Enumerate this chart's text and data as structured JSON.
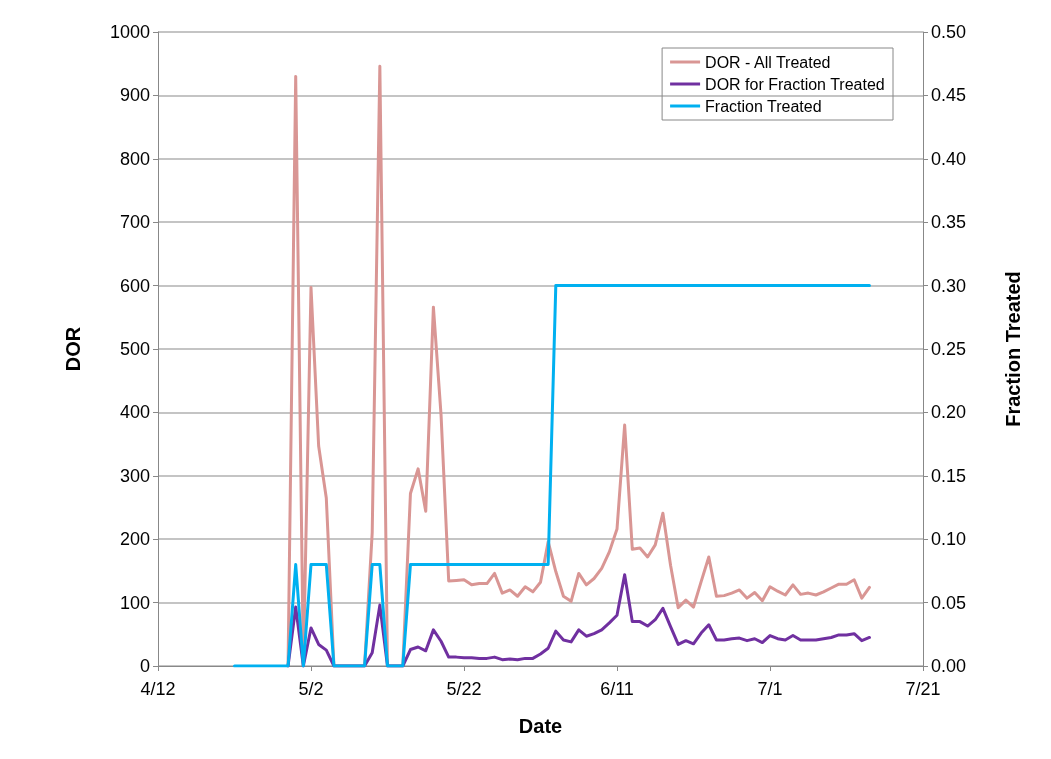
{
  "chart_data": {
    "type": "line",
    "xlabel": "Date",
    "ylabel": "DOR",
    "y2label": "Fraction Treated",
    "x": [
      "--04-29",
      "--04-30",
      "--05-01",
      "--05-02",
      "--05-03",
      "--05-04",
      "--05-05",
      "--05-06",
      "--05-07",
      "--05-08",
      "--05-09",
      "--05-10",
      "--05-11",
      "--05-12",
      "--05-13",
      "--05-14",
      "--05-15",
      "--05-16",
      "--05-17",
      "--05-18",
      "--05-19",
      "--05-20",
      "--05-21",
      "--05-22",
      "--05-23",
      "--05-24",
      "--05-25",
      "--05-26",
      "--05-27",
      "--05-28",
      "--05-29",
      "--05-30",
      "--05-31",
      "--06-01",
      "--06-02",
      "--06-03",
      "--06-04",
      "--06-05",
      "--06-06",
      "--06-07",
      "--06-08",
      "--06-09",
      "--06-10",
      "--06-11",
      "--06-12",
      "--06-13",
      "--06-14",
      "--06-15",
      "--06-16",
      "--06-17",
      "--06-18",
      "--06-19",
      "--06-20",
      "--06-21",
      "--06-22",
      "--06-23",
      "--06-24",
      "--06-25",
      "--06-26",
      "--06-27",
      "--06-28",
      "--06-29",
      "--06-30",
      "--07-01",
      "--07-02",
      "--07-03",
      "--07-04",
      "--07-05",
      "--07-06",
      "--07-07",
      "--07-08",
      "--07-09",
      "--07-10",
      "--07-11",
      "--07-12",
      "--07-13",
      "--07-14"
    ],
    "series": [
      {
        "name": "DOR - All Treated",
        "color": "#d99694",
        "values": [
          0,
          930,
          0,
          597,
          347,
          265,
          0,
          0,
          0,
          0,
          0,
          210,
          946,
          0,
          0,
          0,
          272,
          311,
          244,
          566,
          396,
          134,
          135,
          136,
          128,
          130,
          130,
          146,
          115,
          120,
          110,
          125,
          117,
          132,
          196,
          149,
          110,
          102,
          146,
          128,
          138,
          154,
          180,
          216,
          380,
          184,
          186,
          172,
          191,
          241,
          159,
          92,
          104,
          93,
          133,
          172,
          110,
          111,
          115,
          120,
          107,
          116,
          103,
          125,
          118,
          112,
          128,
          113,
          115,
          112,
          117,
          123,
          129,
          129,
          136,
          107,
          124
        ]
      },
      {
        "name": "DOR for Fraction Treated",
        "color": "#7030a0",
        "values": [
          0,
          93,
          0,
          60,
          34,
          25,
          0,
          0,
          0,
          0,
          0,
          21,
          96,
          0,
          0,
          0,
          26,
          30,
          24,
          57,
          39,
          14,
          14,
          13,
          13,
          12,
          12,
          14,
          10,
          11,
          10,
          12,
          12,
          19,
          28,
          55,
          41,
          38,
          57,
          47,
          51,
          57,
          68,
          80,
          144,
          70,
          70,
          63,
          73,
          91,
          62,
          34,
          40,
          35,
          52,
          65,
          41,
          41,
          43,
          44,
          40,
          43,
          37,
          48,
          43,
          41,
          48,
          41,
          41,
          41,
          43,
          45,
          49,
          49,
          51,
          40,
          45
        ]
      },
      {
        "name": "Fraction Treated",
        "color": "#00b0f0",
        "axis": "y2",
        "x": [
          "--04-22",
          "--04-29",
          "--04-30",
          "--05-01",
          "--05-02",
          "--05-04",
          "--05-05",
          "--05-09",
          "--05-10",
          "--05-11",
          "--05-12",
          "--05-14",
          "--05-15",
          "--06-02",
          "--06-03",
          "--07-14"
        ],
        "values": [
          0,
          0,
          0.08,
          0,
          0.08,
          0.08,
          0,
          0,
          0.08,
          0.08,
          0,
          0,
          0.08,
          0.08,
          0.3,
          0.3
        ]
      }
    ],
    "xlim": [
      "--04-12",
      "--07-21"
    ],
    "xticks": [
      {
        "value": "--04-12",
        "label": "4/12"
      },
      {
        "value": "--05-02",
        "label": "5/2"
      },
      {
        "value": "--05-22",
        "label": "5/22"
      },
      {
        "value": "--06-11",
        "label": "6/11"
      },
      {
        "value": "--07-01",
        "label": "7/1"
      },
      {
        "value": "--07-21",
        "label": "7/21"
      }
    ],
    "ylim": [
      0,
      1000
    ],
    "yticks": [
      0,
      100,
      200,
      300,
      400,
      500,
      600,
      700,
      800,
      900,
      1000
    ],
    "y2lim": [
      0,
      0.5
    ],
    "y2ticks": [
      {
        "value": 0,
        "label": "0.00"
      },
      {
        "value": 0.05,
        "label": "0.05"
      },
      {
        "value": 0.1,
        "label": "0.10"
      },
      {
        "value": 0.15,
        "label": "0.15"
      },
      {
        "value": 0.2,
        "label": "0.20"
      },
      {
        "value": 0.25,
        "label": "0.25"
      },
      {
        "value": 0.3,
        "label": "0.30"
      },
      {
        "value": 0.35,
        "label": "0.35"
      },
      {
        "value": 0.4,
        "label": "0.40"
      },
      {
        "value": 0.45,
        "label": "0.45"
      },
      {
        "value": 0.5,
        "label": "0.50"
      }
    ],
    "grid": "y",
    "legend": "top right",
    "marker": "none",
    "line_style": "solid"
  }
}
